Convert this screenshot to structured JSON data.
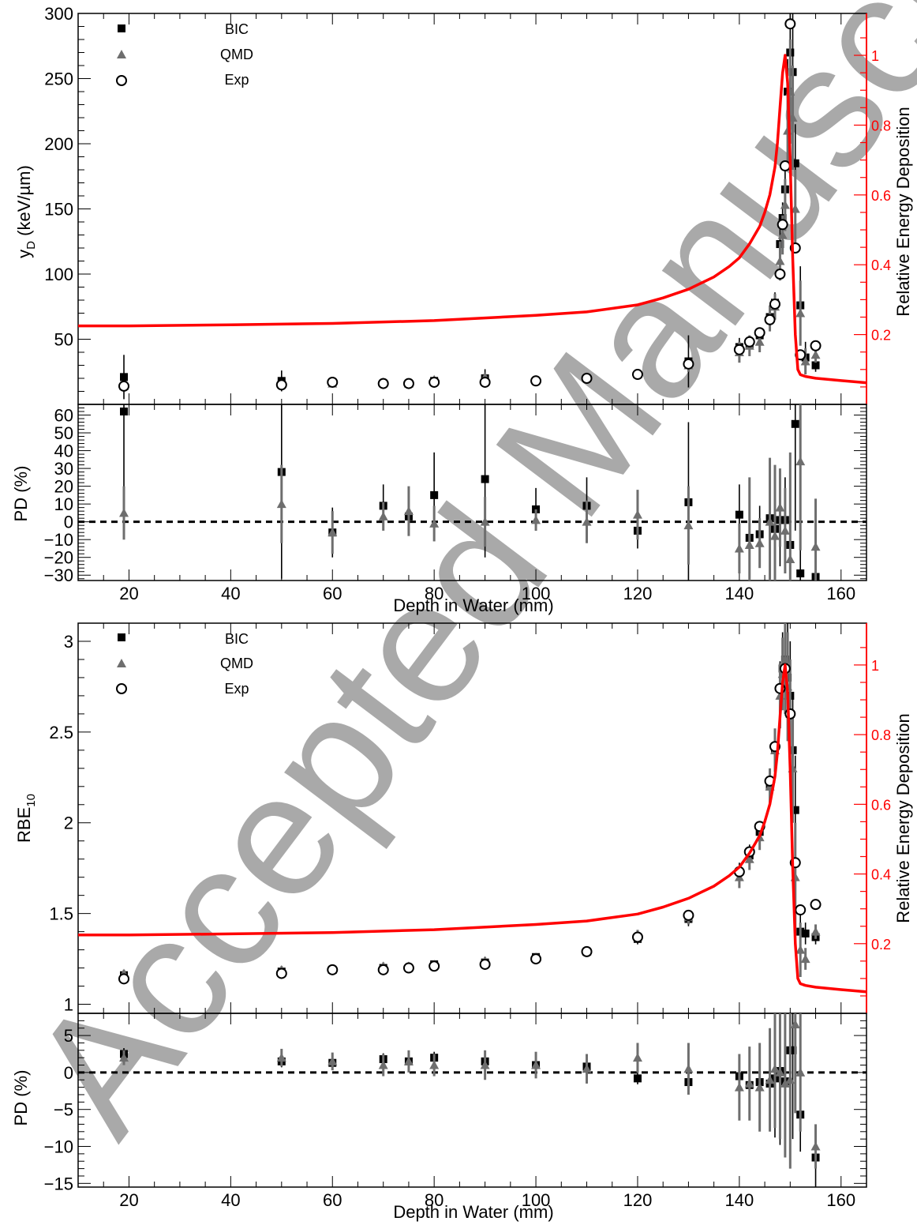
{
  "watermark": "Accepted Manuscript",
  "chart_data": [
    {
      "type": "scatter",
      "xlabel": "",
      "ylabel": "y_D (keV/µm)",
      "ylabel_main": "y",
      "ylabel_sub": "D",
      "ylabel_rest": " (keV/µm)",
      "xlim": [
        10,
        165
      ],
      "ylim": [
        0,
        300
      ],
      "yticks": [
        50,
        100,
        150,
        200,
        250,
        300
      ],
      "ytick_labels": [
        "50",
        "100",
        "150",
        "200",
        "250",
        "300"
      ],
      "legend_position": "top-left",
      "legend": [
        "BIC",
        "QMD",
        "Exp"
      ],
      "series": [
        {
          "name": "BIC",
          "marker": "square",
          "color": "#000000",
          "x": [
            19,
            50,
            60,
            70,
            75,
            80,
            90,
            100,
            110,
            120,
            130,
            140,
            142,
            144,
            146,
            147,
            148,
            148.5,
            149,
            149.5,
            150,
            150.5,
            151,
            152,
            153,
            155
          ],
          "y": [
            21,
            18,
            17,
            16,
            16,
            18,
            20,
            18,
            20,
            23,
            33,
            44,
            46,
            53,
            67,
            78,
            123,
            143,
            165,
            240,
            270,
            255,
            185,
            76,
            36,
            30
          ],
          "err": [
            17,
            8,
            2,
            2,
            2,
            3,
            7,
            3,
            3,
            2,
            20,
            7,
            5,
            5,
            8,
            8,
            12,
            12,
            15,
            25,
            40,
            60,
            30,
            30,
            12,
            5
          ]
        },
        {
          "name": "QMD",
          "marker": "triangle",
          "color": "#6e6e6e",
          "x": [
            19,
            50,
            60,
            70,
            75,
            80,
            90,
            100,
            110,
            120,
            130,
            140,
            142,
            144,
            146,
            147,
            148,
            148.5,
            149,
            149.5,
            150,
            150.5,
            151,
            152,
            153,
            155
          ],
          "y": [
            14,
            16,
            16,
            17,
            16,
            19,
            21,
            19,
            21,
            23,
            30,
            40,
            45,
            48,
            66,
            75,
            110,
            130,
            153,
            210,
            240,
            220,
            150,
            70,
            33,
            38
          ],
          "err": [
            3,
            3,
            2,
            2,
            2,
            2,
            3,
            2,
            3,
            3,
            5,
            8,
            8,
            8,
            10,
            10,
            15,
            15,
            20,
            30,
            40,
            40,
            30,
            25,
            10,
            6
          ]
        },
        {
          "name": "Exp",
          "marker": "circle-open",
          "color": "#000000",
          "x": [
            19,
            50,
            60,
            70,
            75,
            80,
            90,
            100,
            110,
            120,
            130,
            140,
            142,
            144,
            146,
            147,
            148,
            148.5,
            149,
            150,
            151,
            152,
            155
          ],
          "y": [
            14,
            15,
            17,
            16,
            16,
            17,
            17,
            18,
            20,
            23,
            31,
            42,
            48,
            55,
            65,
            77,
            100,
            138,
            183,
            292,
            120,
            38,
            45
          ],
          "err": [
            0,
            0,
            0,
            0,
            0,
            0,
            0,
            0,
            0,
            0,
            0,
            0,
            0,
            0,
            0,
            0,
            0,
            0,
            0,
            0,
            0,
            0,
            0
          ]
        }
      ],
      "secondary_axis": {
        "label": "Relative Energy Deposition",
        "color": "#ff0000",
        "ylim": [
          0,
          1.12
        ],
        "ticks": [
          0.2,
          0.4,
          0.6,
          0.8,
          1
        ],
        "tick_labels": [
          "0.2",
          "0.4",
          "0.6",
          "0.8",
          "1"
        ],
        "curve": {
          "x": [
            10,
            20,
            40,
            60,
            80,
            100,
            110,
            120,
            125,
            130,
            135,
            138,
            140,
            142,
            144,
            145,
            146,
            147,
            147.5,
            148,
            148.5,
            149,
            149.5,
            150,
            150.5,
            151,
            151.5,
            152,
            153,
            155,
            160,
            165
          ],
          "y": [
            0.225,
            0.225,
            0.228,
            0.232,
            0.24,
            0.255,
            0.265,
            0.285,
            0.305,
            0.33,
            0.365,
            0.395,
            0.42,
            0.46,
            0.51,
            0.55,
            0.6,
            0.68,
            0.75,
            0.85,
            0.95,
            1.0,
            0.92,
            0.7,
            0.42,
            0.2,
            0.1,
            0.085,
            0.08,
            0.075,
            0.068,
            0.062
          ]
        }
      }
    },
    {
      "type": "scatter",
      "xlabel": "Depth in Water (mm)",
      "ylabel": "PD (%)",
      "xlim": [
        10,
        165
      ],
      "ylim": [
        -33,
        66
      ],
      "yticks": [
        -30,
        -20,
        -10,
        0,
        10,
        20,
        30,
        40,
        50,
        60
      ],
      "ytick_labels": [
        "−30",
        "−20",
        "−10",
        "0",
        "10",
        "20",
        "30",
        "40",
        "50",
        "60"
      ],
      "xticks": [
        20,
        40,
        60,
        80,
        100,
        120,
        140,
        160
      ],
      "xtick_labels": [
        "20",
        "40",
        "60",
        "80",
        "100",
        "120",
        "140",
        "160"
      ],
      "reference_line": 0,
      "series": [
        {
          "name": "BIC",
          "marker": "square",
          "color": "#000000",
          "x": [
            19,
            50,
            60,
            70,
            75,
            80,
            90,
            100,
            110,
            120,
            130,
            140,
            142,
            144,
            146,
            147,
            148,
            149,
            150,
            151,
            152,
            155
          ],
          "y": [
            62,
            28,
            -6,
            9,
            3,
            15,
            24,
            7,
            9,
            -5,
            11,
            4,
            -9,
            -7,
            2,
            -4,
            1,
            1,
            -13,
            55,
            -29,
            -31
          ],
          "err": [
            60,
            60,
            14,
            12,
            10,
            24,
            44,
            12,
            16,
            10,
            45,
            17,
            20,
            16,
            25,
            30,
            26,
            24,
            30,
            60,
            40,
            15
          ]
        },
        {
          "name": "QMD",
          "marker": "triangle",
          "color": "#6e6e6e",
          "x": [
            19,
            50,
            60,
            70,
            75,
            80,
            90,
            100,
            110,
            120,
            130,
            140,
            142,
            144,
            146,
            147,
            148,
            149,
            150,
            152,
            155
          ],
          "y": [
            5,
            10,
            -6,
            3,
            6,
            -1,
            0,
            1,
            0,
            4,
            -2,
            -15,
            -13,
            -12,
            0,
            -8,
            8,
            -5,
            -21,
            34,
            -14
          ],
          "err": [
            15,
            22,
            12,
            8,
            14,
            10,
            14,
            6,
            12,
            14,
            22,
            14,
            38,
            14,
            36,
            40,
            22,
            24,
            60,
            50,
            27
          ]
        }
      ]
    },
    {
      "type": "scatter",
      "xlabel": "",
      "ylabel": "RBE_10",
      "ylabel_main": "RBE",
      "ylabel_sub": "10",
      "ylabel_rest": "",
      "xlim": [
        10,
        165
      ],
      "ylim": [
        0.95,
        3.1
      ],
      "yticks": [
        1,
        1.5,
        2,
        2.5,
        3
      ],
      "ytick_labels": [
        "1",
        "1.5",
        "2",
        "2.5",
        "3"
      ],
      "legend_position": "top-left",
      "legend": [
        "BIC",
        "QMD",
        "Exp"
      ],
      "series": [
        {
          "name": "BIC",
          "marker": "square",
          "color": "#000000",
          "x": [
            19,
            50,
            60,
            70,
            75,
            80,
            90,
            100,
            110,
            120,
            130,
            140,
            142,
            144,
            146,
            147,
            148,
            148.5,
            149,
            149.5,
            150,
            150.5,
            151,
            152,
            153,
            155
          ],
          "y": [
            1.16,
            1.18,
            1.19,
            1.2,
            1.2,
            1.22,
            1.23,
            1.26,
            1.29,
            1.36,
            1.47,
            1.73,
            1.82,
            1.95,
            2.2,
            2.4,
            2.74,
            2.85,
            2.9,
            2.8,
            2.7,
            2.4,
            2.07,
            1.4,
            1.39,
            1.37
          ],
          "err": [
            0.02,
            0.02,
            0.02,
            0.02,
            0.02,
            0.02,
            0.02,
            0.02,
            0.02,
            0.03,
            0.04,
            0.05,
            0.06,
            0.06,
            0.08,
            0.1,
            0.15,
            0.2,
            0.25,
            0.3,
            0.3,
            0.3,
            0.3,
            0.12,
            0.06,
            0.04
          ]
        },
        {
          "name": "QMD",
          "marker": "triangle",
          "color": "#6e6e6e",
          "x": [
            19,
            50,
            60,
            70,
            75,
            80,
            90,
            100,
            110,
            120,
            130,
            140,
            142,
            144,
            146,
            147,
            148,
            148.5,
            149,
            149.5,
            150,
            150.5,
            151,
            152,
            153,
            155
          ],
          "y": [
            1.17,
            1.19,
            1.19,
            1.21,
            1.21,
            1.22,
            1.24,
            1.26,
            1.29,
            1.38,
            1.48,
            1.7,
            1.8,
            1.92,
            2.2,
            2.4,
            2.7,
            2.82,
            2.9,
            2.75,
            2.6,
            2.3,
            1.7,
            1.3,
            1.25,
            1.4
          ],
          "err": [
            0.02,
            0.02,
            0.02,
            0.02,
            0.02,
            0.02,
            0.02,
            0.02,
            0.02,
            0.03,
            0.04,
            0.06,
            0.06,
            0.07,
            0.1,
            0.12,
            0.18,
            0.2,
            0.3,
            0.3,
            0.3,
            0.3,
            0.3,
            0.15,
            0.06,
            0.04
          ]
        },
        {
          "name": "Exp",
          "marker": "circle-open",
          "color": "#000000",
          "x": [
            19,
            50,
            60,
            70,
            75,
            80,
            90,
            100,
            110,
            120,
            130,
            140,
            142,
            144,
            146,
            147,
            148,
            149,
            150,
            151,
            152,
            155
          ],
          "y": [
            1.14,
            1.17,
            1.19,
            1.19,
            1.2,
            1.21,
            1.22,
            1.25,
            1.29,
            1.37,
            1.49,
            1.73,
            1.84,
            1.98,
            2.23,
            2.42,
            2.74,
            2.85,
            2.6,
            1.78,
            1.52,
            1.55
          ],
          "err": [
            0,
            0,
            0,
            0,
            0,
            0,
            0,
            0,
            0,
            0,
            0,
            0,
            0,
            0,
            0,
            0,
            0,
            0,
            0,
            0,
            0,
            0
          ]
        }
      ],
      "secondary_axis": {
        "label": "Relative Energy Deposition",
        "color": "#ff0000",
        "ylim": [
          0,
          1.12
        ],
        "ticks": [
          0.2,
          0.4,
          0.6,
          0.8,
          1
        ],
        "tick_labels": [
          "0.2",
          "0.4",
          "0.6",
          "0.8",
          "1"
        ],
        "curve": {
          "x": [
            10,
            20,
            40,
            60,
            80,
            100,
            110,
            120,
            125,
            130,
            135,
            138,
            140,
            142,
            144,
            145,
            146,
            147,
            147.5,
            148,
            148.5,
            149,
            149.5,
            150,
            150.5,
            151,
            151.5,
            152,
            153,
            155,
            160,
            165
          ],
          "y": [
            0.225,
            0.225,
            0.228,
            0.232,
            0.24,
            0.255,
            0.265,
            0.285,
            0.305,
            0.33,
            0.365,
            0.395,
            0.42,
            0.46,
            0.51,
            0.55,
            0.6,
            0.68,
            0.75,
            0.85,
            0.95,
            1.0,
            0.92,
            0.7,
            0.42,
            0.2,
            0.1,
            0.085,
            0.08,
            0.075,
            0.068,
            0.062
          ]
        }
      }
    },
    {
      "type": "scatter",
      "xlabel": "Depth in Water (mm)",
      "ylabel": "PD (%)",
      "xlim": [
        10,
        165
      ],
      "ylim": [
        -15.5,
        8
      ],
      "yticks": [
        -15,
        -10,
        -5,
        0,
        5
      ],
      "ytick_labels": [
        "−15",
        "−10",
        "−5",
        "0",
        "5"
      ],
      "xticks": [
        20,
        40,
        60,
        80,
        100,
        120,
        140,
        160
      ],
      "xtick_labels": [
        "20",
        "40",
        "60",
        "80",
        "100",
        "120",
        "140",
        "160"
      ],
      "reference_line": 0,
      "series": [
        {
          "name": "BIC",
          "marker": "square",
          "color": "#000000",
          "x": [
            19,
            50,
            60,
            70,
            75,
            80,
            90,
            100,
            110,
            120,
            130,
            140,
            142,
            144,
            146,
            147,
            148,
            149,
            150,
            150.5,
            152,
            155
          ],
          "y": [
            2.5,
            1.5,
            1.3,
            1.8,
            1.5,
            2.0,
            1.5,
            1.0,
            0.8,
            -0.8,
            -1.3,
            -0.5,
            -1.7,
            -1.3,
            -1.5,
            -0.8,
            0.2,
            -1.2,
            3.0,
            3.0,
            -5.7,
            -11.5
          ],
          "err": [
            0.8,
            0.8,
            0.8,
            0.8,
            0.8,
            0.8,
            0.8,
            0.8,
            0.8,
            0.8,
            0.8,
            3.0,
            4.0,
            5.0,
            6.0,
            8.0,
            10.0,
            10.0,
            12.0,
            12.0,
            5.0,
            4.0
          ]
        },
        {
          "name": "QMD",
          "marker": "triangle",
          "color": "#6e6e6e",
          "x": [
            19,
            50,
            60,
            70,
            75,
            80,
            90,
            100,
            110,
            120,
            130,
            140,
            142,
            144,
            146,
            147,
            148,
            149,
            150,
            151,
            152,
            155
          ],
          "y": [
            2.0,
            2.0,
            1.5,
            1.0,
            1.5,
            1.0,
            1.0,
            1.0,
            0.5,
            2.0,
            0.5,
            -2.0,
            -1.5,
            -2.0,
            -1.0,
            0.5,
            0.0,
            -1.5,
            -1.0,
            6.5,
            0.0,
            -10.0
          ],
          "err": [
            1.0,
            1.2,
            1.2,
            1.5,
            1.5,
            1.5,
            2.0,
            1.8,
            2.0,
            2.0,
            3.5,
            4.5,
            5.0,
            6.0,
            7.0,
            8.0,
            9.0,
            10.0,
            12.0,
            12.0,
            8.0,
            3.0
          ]
        }
      ]
    }
  ]
}
